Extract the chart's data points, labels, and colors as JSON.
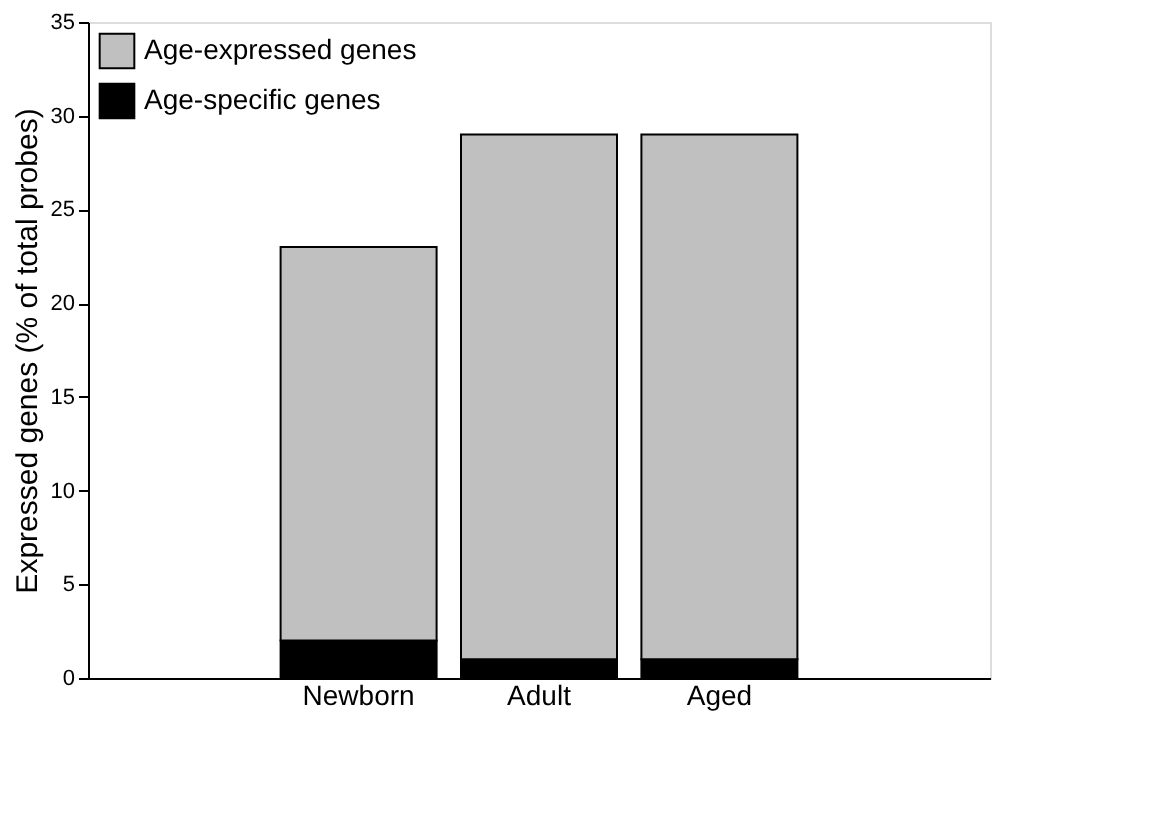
{
  "chart_data": {
    "type": "bar",
    "stacked": true,
    "ylabel": "Expressed genes (% of total probes)",
    "categories": [
      "Newborn",
      "Adult",
      "Aged"
    ],
    "series": [
      {
        "name": "Age-specific genes",
        "color": "#000000",
        "values": [
          2,
          1,
          1
        ]
      },
      {
        "name": "Age-expressed genes",
        "color": "#c0c0c0",
        "values": [
          21,
          28,
          28
        ]
      }
    ],
    "ylim": [
      0,
      35
    ],
    "yticks": [
      0,
      5,
      10,
      15,
      20,
      25,
      30,
      35
    ],
    "grid": false,
    "legend": "top left"
  }
}
